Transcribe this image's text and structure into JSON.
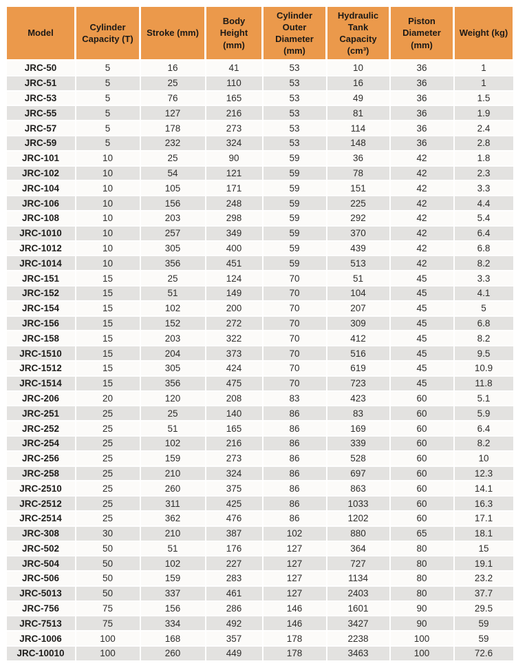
{
  "colors": {
    "header_bg": "#EB994B",
    "header_text": "#1D1A17",
    "row_bg": "#FCFBF9",
    "row_alt_bg": "#E3E2E0",
    "body_text": "#2E2D2B",
    "gridline": "#FFFFFF"
  },
  "chart_data": {
    "type": "table",
    "legend_position": "none",
    "grid": "white 2px gridlines, zebra striping (white / light gray), orange header band",
    "columns": [
      {
        "key": "model",
        "label": "Model"
      },
      {
        "key": "cylinder-capacity",
        "label": "Cylinder Capacity (T)"
      },
      {
        "key": "stroke",
        "label": "Stroke (mm)"
      },
      {
        "key": "body-height",
        "label": "Body Height (mm)"
      },
      {
        "key": "cylinder-outer-diameter",
        "label": "Cylinder Outer Diameter (mm)"
      },
      {
        "key": "hydraulic-tank-capacity",
        "label": "Hydraulic Tank Capacity (cm³)"
      },
      {
        "key": "piston-diameter",
        "label": "Piston Diameter (mm)"
      },
      {
        "key": "weight",
        "label": "Weight (kg)"
      }
    ],
    "rows": [
      [
        "JRC-50",
        5,
        16,
        41,
        53,
        10,
        36,
        1
      ],
      [
        "JRC-51",
        5,
        25,
        110,
        53,
        16,
        36,
        1
      ],
      [
        "JRC-53",
        5,
        76,
        165,
        53,
        49,
        36,
        1.5
      ],
      [
        "JRC-55",
        5,
        127,
        216,
        53,
        81,
        36,
        1.9
      ],
      [
        "JRC-57",
        5,
        178,
        273,
        53,
        114,
        36,
        2.4
      ],
      [
        "JRC-59",
        5,
        232,
        324,
        53,
        148,
        36,
        2.8
      ],
      [
        "JRC-101",
        10,
        25,
        90,
        59,
        36,
        42,
        1.8
      ],
      [
        "JRC-102",
        10,
        54,
        121,
        59,
        78,
        42,
        2.3
      ],
      [
        "JRC-104",
        10,
        105,
        171,
        59,
        151,
        42,
        3.3
      ],
      [
        "JRC-106",
        10,
        156,
        248,
        59,
        225,
        42,
        4.4
      ],
      [
        "JRC-108",
        10,
        203,
        298,
        59,
        292,
        42,
        5.4
      ],
      [
        "JRC-1010",
        10,
        257,
        349,
        59,
        370,
        42,
        6.4
      ],
      [
        "JRC-1012",
        10,
        305,
        400,
        59,
        439,
        42,
        6.8
      ],
      [
        "JRC-1014",
        10,
        356,
        451,
        59,
        513,
        42,
        8.2
      ],
      [
        "JRC-151",
        15,
        25,
        124,
        70,
        51,
        45,
        3.3
      ],
      [
        "JRC-152",
        15,
        51,
        149,
        70,
        104,
        45,
        4.1
      ],
      [
        "JRC-154",
        15,
        102,
        200,
        70,
        207,
        45,
        5
      ],
      [
        "JRC-156",
        15,
        152,
        272,
        70,
        309,
        45,
        6.8
      ],
      [
        "JRC-158",
        15,
        203,
        322,
        70,
        412,
        45,
        8.2
      ],
      [
        "JRC-1510",
        15,
        204,
        373,
        70,
        516,
        45,
        9.5
      ],
      [
        "JRC-1512",
        15,
        305,
        424,
        70,
        619,
        45,
        10.9
      ],
      [
        "JRC-1514",
        15,
        356,
        475,
        70,
        723,
        45,
        11.8
      ],
      [
        "JRC-206",
        20,
        120,
        208,
        83,
        423,
        60,
        5.1
      ],
      [
        "JRC-251",
        25,
        25,
        140,
        86,
        83,
        60,
        5.9
      ],
      [
        "JRC-252",
        25,
        51,
        165,
        86,
        169,
        60,
        6.4
      ],
      [
        "JRC-254",
        25,
        102,
        216,
        86,
        339,
        60,
        8.2
      ],
      [
        "JRC-256",
        25,
        159,
        273,
        86,
        528,
        60,
        10
      ],
      [
        "JRC-258",
        25,
        210,
        324,
        86,
        697,
        60,
        12.3
      ],
      [
        "JRC-2510",
        25,
        260,
        375,
        86,
        863,
        60,
        14.1
      ],
      [
        "JRC-2512",
        25,
        311,
        425,
        86,
        1033,
        60,
        16.3
      ],
      [
        "JRC-2514",
        25,
        362,
        476,
        86,
        1202,
        60,
        17.1
      ],
      [
        "JRC-308",
        30,
        210,
        387,
        102,
        880,
        65,
        18.1
      ],
      [
        "JRC-502",
        50,
        51,
        176,
        127,
        364,
        80,
        15
      ],
      [
        "JRC-504",
        50,
        102,
        227,
        127,
        727,
        80,
        19.1
      ],
      [
        "JRC-506",
        50,
        159,
        283,
        127,
        1134,
        80,
        23.2
      ],
      [
        "JRC-5013",
        50,
        337,
        461,
        127,
        2403,
        80,
        37.7
      ],
      [
        "JRC-756",
        75,
        156,
        286,
        146,
        1601,
        90,
        29.5
      ],
      [
        "JRC-7513",
        75,
        334,
        492,
        146,
        3427,
        90,
        59
      ],
      [
        "JRC-1006",
        100,
        168,
        357,
        178,
        2238,
        100,
        59
      ],
      [
        "JRC-10010",
        100,
        260,
        449,
        178,
        3463,
        100,
        72.6
      ]
    ]
  }
}
